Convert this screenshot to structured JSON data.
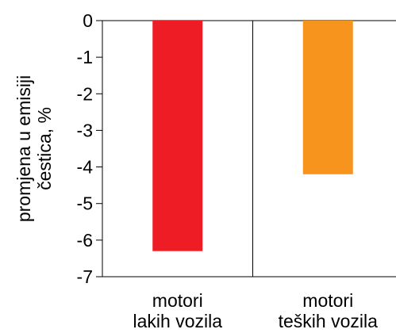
{
  "chart_data": {
    "type": "bar",
    "title": "",
    "xlabel": "",
    "ylabel": [
      "promjena u emisiji",
      "čestica, %"
    ],
    "categories": [
      [
        "motori",
        "lakih vozila"
      ],
      [
        "motori",
        "teških vozila"
      ]
    ],
    "values": [
      -6.3,
      -4.2
    ],
    "colors": [
      "#ee1c25",
      "#f7941d"
    ],
    "ylim": [
      -7,
      0
    ],
    "yticks": [
      0,
      -1,
      -2,
      -3,
      -4,
      -5,
      -6,
      -7
    ],
    "ytick_labels": [
      "0",
      "-1",
      "-2",
      "-3",
      "-4",
      "-5",
      "-6",
      "-7"
    ],
    "grid": false,
    "legend": "none"
  }
}
